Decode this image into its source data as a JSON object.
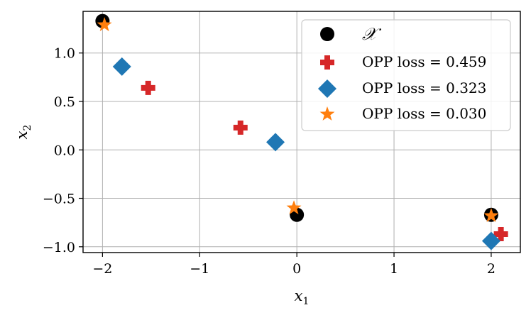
{
  "chart_data": {
    "type": "scatter",
    "xlabel": "x",
    "xlabel_sub": "1",
    "ylabel": "x",
    "ylabel_sub": "2",
    "xlim": [
      -2.2,
      2.3
    ],
    "ylim": [
      -1.06,
      1.43
    ],
    "xticks": [
      -2,
      -1,
      0,
      1,
      2
    ],
    "xtick_labels": [
      "−2",
      "−1",
      "0",
      "1",
      "2"
    ],
    "yticks": [
      -1.0,
      -0.5,
      0.0,
      0.5,
      1.0
    ],
    "ytick_labels": [
      "−1.0",
      "−0.5",
      "0.0",
      "0.5",
      "1.0"
    ],
    "grid": true,
    "legend_position": "top-right",
    "series": [
      {
        "name": "𝒳",
        "marker": "circle",
        "color": "#000000",
        "points": [
          [
            -2.0,
            1.33
          ],
          [
            0.0,
            -0.67
          ],
          [
            2.0,
            -0.67
          ]
        ]
      },
      {
        "name": "OPP loss = 0.459",
        "marker": "plus",
        "color": "#d62728",
        "points": [
          [
            -1.53,
            0.64
          ],
          [
            -0.58,
            0.23
          ],
          [
            2.1,
            -0.87
          ]
        ]
      },
      {
        "name": "OPP loss = 0.323",
        "marker": "diamond",
        "color": "#1f77b4",
        "points": [
          [
            -1.8,
            0.86
          ],
          [
            -0.22,
            0.08
          ],
          [
            2.0,
            -0.94
          ]
        ]
      },
      {
        "name": "OPP loss = 0.030",
        "marker": "star",
        "color": "#ff7f0e",
        "points": [
          [
            -1.98,
            1.29
          ],
          [
            -0.03,
            -0.6
          ],
          [
            2.0,
            -0.68
          ]
        ]
      }
    ]
  }
}
